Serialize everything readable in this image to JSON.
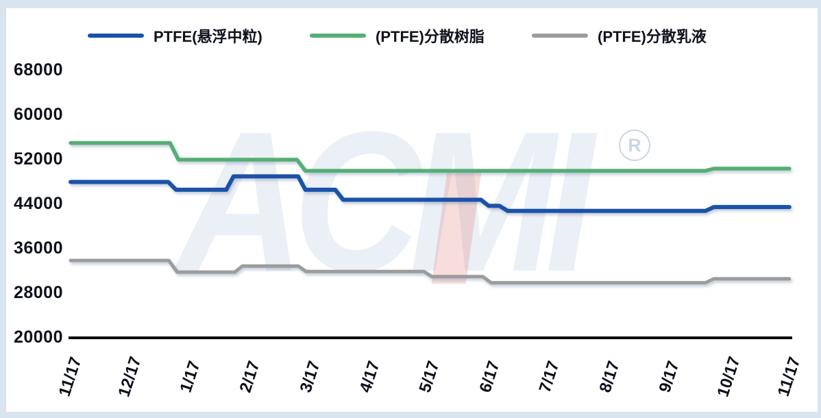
{
  "legend": [
    {
      "label": "PTFE(悬浮中粒)",
      "color": "#1b52a8"
    },
    {
      "label": "(PTFE)分散树脂",
      "color": "#55ae74"
    },
    {
      "label": "(PTFE)分散乳液",
      "color": "#9c9c9c"
    }
  ],
  "watermark": {
    "text": "ACMI",
    "registered": "R"
  },
  "frame_color": "#d9e4f1",
  "axis_color": "#0b0b0e",
  "chart_data": {
    "type": "line",
    "title": "",
    "xlabel": "",
    "ylabel": "",
    "grid": false,
    "legend_position": "top",
    "x_axis": {
      "unit": "month/year",
      "labels": [
        "11/17",
        "12/17",
        "1/17",
        "2/17",
        "3/17",
        "4/17",
        "5/17",
        "6/17",
        "7/17",
        "8/17",
        "9/17",
        "10/17",
        "11/17"
      ]
    },
    "y_axis": {
      "min": 20000,
      "max": 68000,
      "tick_step": 8000,
      "ticks": [
        68000,
        60000,
        52000,
        44000,
        36000,
        28000,
        20000
      ]
    },
    "series": [
      {
        "name": "PTFE(悬浮中粒)",
        "color": "#1b52a8",
        "width": 6,
        "points": [
          [
            0,
            48000
          ],
          [
            1.63,
            48000
          ],
          [
            1.76,
            46600
          ],
          [
            2.6,
            46600
          ],
          [
            2.72,
            49000
          ],
          [
            3.8,
            49000
          ],
          [
            3.92,
            46600
          ],
          [
            4.42,
            46600
          ],
          [
            4.55,
            44800
          ],
          [
            6.85,
            44800
          ],
          [
            6.98,
            43700
          ],
          [
            7.16,
            43700
          ],
          [
            7.3,
            42800
          ],
          [
            10.6,
            42800
          ],
          [
            10.74,
            43500
          ],
          [
            12,
            43500
          ]
        ]
      },
      {
        "name": "(PTFE)分散树脂",
        "color": "#55ae74",
        "width": 5.5,
        "points": [
          [
            0,
            55000
          ],
          [
            1.66,
            55000
          ],
          [
            1.8,
            52000
          ],
          [
            3.78,
            52000
          ],
          [
            3.92,
            50000
          ],
          [
            10.6,
            50000
          ],
          [
            10.74,
            50400
          ],
          [
            12,
            50400
          ]
        ]
      },
      {
        "name": "(PTFE)分散乳液",
        "color": "#9c9c9c",
        "width": 5,
        "points": [
          [
            0,
            33900
          ],
          [
            1.64,
            33900
          ],
          [
            1.78,
            31800
          ],
          [
            2.74,
            31800
          ],
          [
            2.87,
            32900
          ],
          [
            3.8,
            32900
          ],
          [
            3.93,
            31900
          ],
          [
            5.9,
            31900
          ],
          [
            6.03,
            31000
          ],
          [
            6.88,
            31000
          ],
          [
            7.02,
            29900
          ],
          [
            10.6,
            29900
          ],
          [
            10.74,
            30600
          ],
          [
            12,
            30600
          ]
        ]
      }
    ]
  }
}
